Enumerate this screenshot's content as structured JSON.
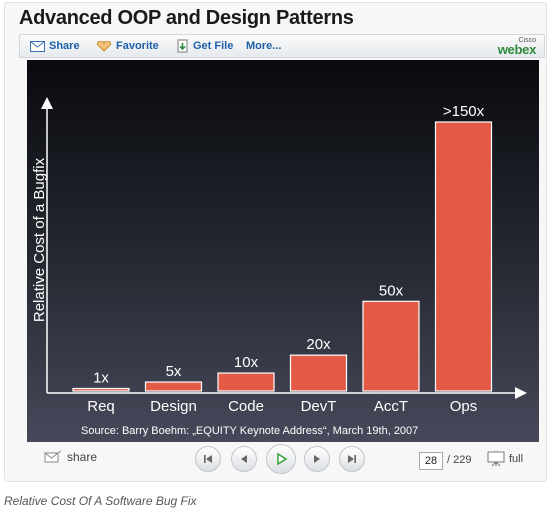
{
  "title": "Advanced OOP and Design Patterns",
  "toolbar": {
    "share_label": "Share",
    "favorite_label": "Favorite",
    "get_file_label": "Get File",
    "more_label": "More...",
    "brand_small": "Cisco",
    "brand_big": "webex"
  },
  "chart_data": {
    "type": "bar",
    "categories": [
      "Req",
      "Design",
      "Code",
      "DevT",
      "AccT",
      "Ops"
    ],
    "values": [
      1,
      5,
      10,
      20,
      50,
      150
    ],
    "value_labels": [
      "1x",
      "5x",
      "10x",
      "20x",
      "50x",
      ">150x"
    ],
    "ylabel": "Relative Cost of a Bugfix",
    "xlabel": "",
    "source": "Source: Barry Boehm: „EQUITY Keynote Address“, March 19th, 2007",
    "ylim": [
      0,
      150
    ],
    "grid": false,
    "bar_color": "#e35a47"
  },
  "controls": {
    "share_label": "share",
    "current_page": "28",
    "total_pages": "/ 229",
    "full_label": "full"
  },
  "caption": "Relative Cost Of A Software Bug Fix"
}
